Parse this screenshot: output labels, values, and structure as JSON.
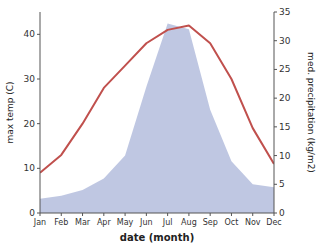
{
  "chart_data": {
    "type": "line",
    "xlabel": "date (month)",
    "ylabel": "max temp (C)",
    "y2label": "med. precipitation (kg/m2)",
    "categories": [
      "Jan",
      "Feb",
      "Mar",
      "Apr",
      "May",
      "Jun",
      "Jul",
      "Aug",
      "Sep",
      "Oct",
      "Nov",
      "Dec"
    ],
    "series": [
      {
        "type": "area",
        "axis": "y2",
        "color": "#aab4d8",
        "values": [
          2.5,
          3,
          4,
          6,
          10,
          22,
          33,
          32,
          18,
          9,
          5,
          4.5
        ]
      },
      {
        "type": "line",
        "color": "#c0504d",
        "values": [
          9,
          13,
          20,
          28,
          33,
          38,
          41,
          42,
          38,
          30,
          19,
          11
        ]
      }
    ],
    "ylim": [
      0,
      45
    ],
    "yticks": [
      0,
      10,
      20,
      30,
      40
    ],
    "y2lim": [
      0,
      35
    ],
    "y2ticks": [
      0,
      5,
      10,
      15,
      20,
      25,
      30,
      35
    ],
    "grid": false
  }
}
